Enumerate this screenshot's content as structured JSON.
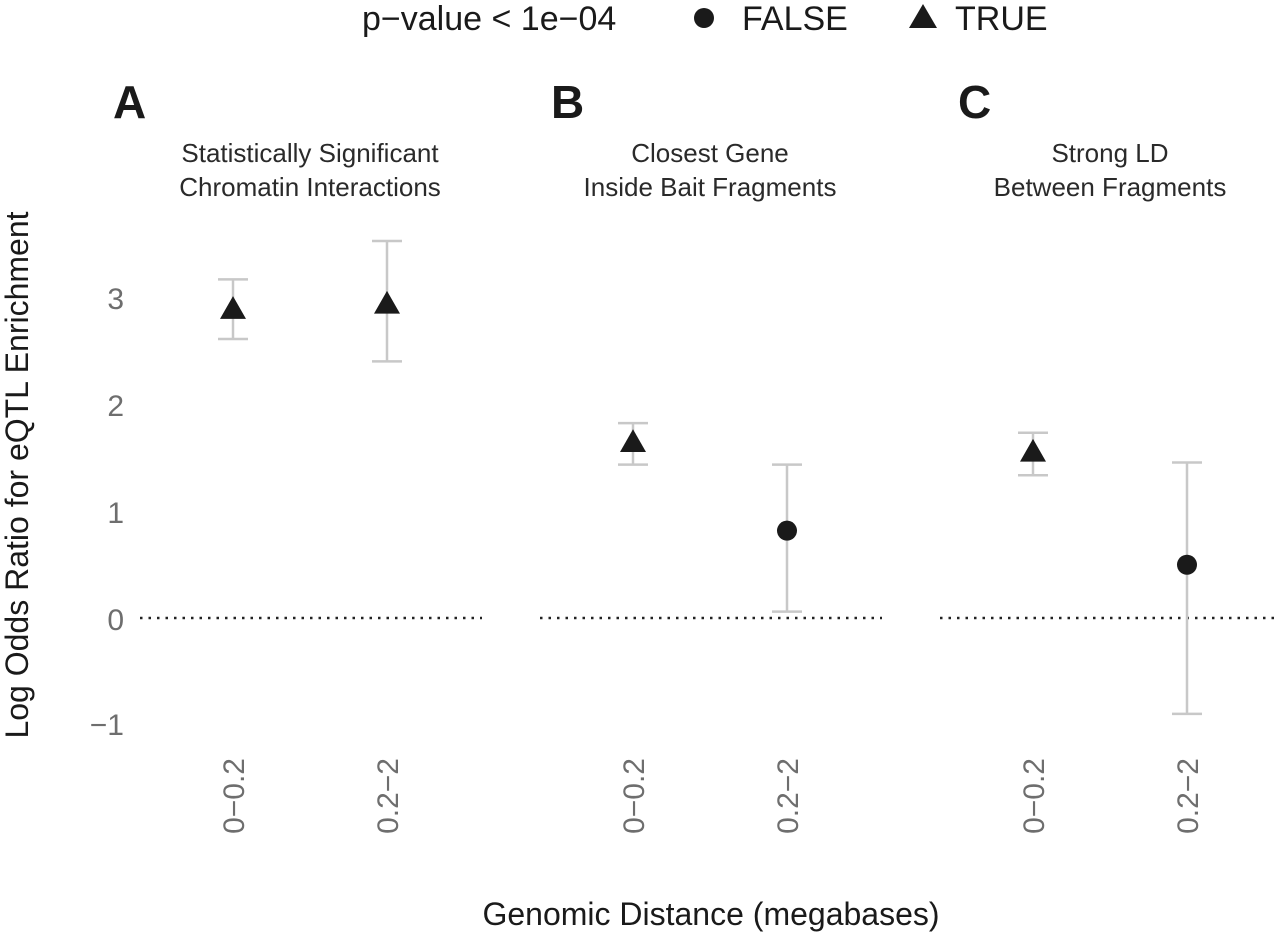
{
  "legend": {
    "title": "p−value < 1e−04",
    "items": [
      {
        "label": "FALSE",
        "shape": "circle"
      },
      {
        "label": "TRUE",
        "shape": "triangle"
      }
    ]
  },
  "chart_data": {
    "type": "scatter",
    "ylabel": "Log Odds Ratio for eQTL Enrichment",
    "xlabel": "Genomic Distance (megabases)",
    "ylim": [
      -1.15,
      3.75
    ],
    "yticks": [
      -1,
      0,
      1,
      2,
      3
    ],
    "ytick_labels": [
      "−1",
      "0",
      "1",
      "2",
      "3"
    ],
    "reference_line": 0,
    "categories": [
      "0−0.2",
      "0.2−2"
    ],
    "mark_color": "#1a1a1a",
    "errorbar_color": "#c8c8c8",
    "panels": [
      {
        "letter": "A",
        "title": [
          "Statistically Significant",
          "Chromatin Interactions"
        ],
        "points": [
          {
            "x": "0−0.2",
            "y": 2.9,
            "lo": 2.62,
            "hi": 3.18,
            "significant": "TRUE"
          },
          {
            "x": "0.2−2",
            "y": 2.95,
            "lo": 2.41,
            "hi": 3.54,
            "significant": "TRUE"
          }
        ]
      },
      {
        "letter": "B",
        "title": [
          "Closest Gene",
          "Inside Bait Fragments"
        ],
        "points": [
          {
            "x": "0−0.2",
            "y": 1.65,
            "lo": 1.44,
            "hi": 1.83,
            "significant": "TRUE"
          },
          {
            "x": "0.2−2",
            "y": 0.82,
            "lo": 0.06,
            "hi": 1.44,
            "significant": "FALSE"
          }
        ]
      },
      {
        "letter": "C",
        "title": [
          "Strong LD",
          "Between Fragments"
        ],
        "points": [
          {
            "x": "0−0.2",
            "y": 1.56,
            "lo": 1.34,
            "hi": 1.74,
            "significant": "TRUE"
          },
          {
            "x": "0.2−2",
            "y": 0.5,
            "lo": -0.9,
            "hi": 1.46,
            "significant": "FALSE"
          }
        ]
      }
    ]
  }
}
